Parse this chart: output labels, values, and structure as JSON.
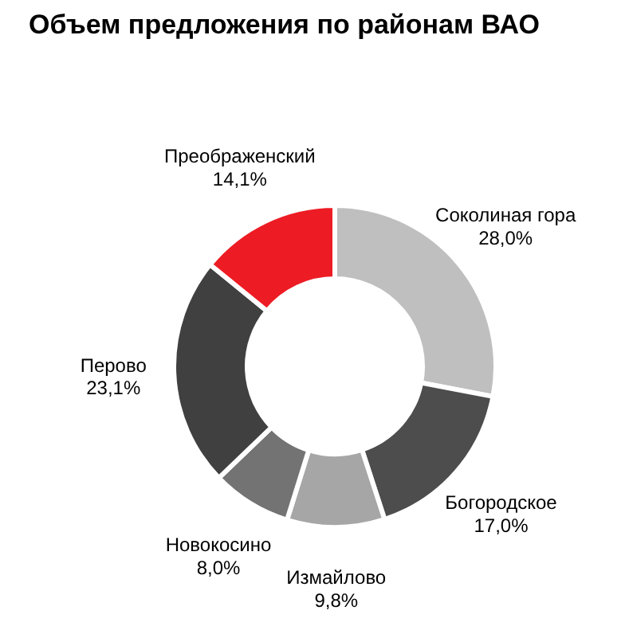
{
  "chart_data": {
    "type": "donut",
    "title": "Объем предложения по районам ВАО",
    "categories": [
      "Соколиная гора",
      "Богородское",
      "Измайлово",
      "Новокосино",
      "Перово",
      "Преображенский"
    ],
    "values": [
      28.0,
      17.0,
      9.8,
      8.0,
      23.1,
      14.1
    ],
    "value_labels": [
      "28,0%",
      "17,0%",
      "9,8%",
      "8,0%",
      "23,1%",
      "14,1%"
    ],
    "colors": [
      "#bfbfbf",
      "#4d4d4d",
      "#a6a6a6",
      "#737373",
      "#404040",
      "#ed1c24"
    ]
  }
}
